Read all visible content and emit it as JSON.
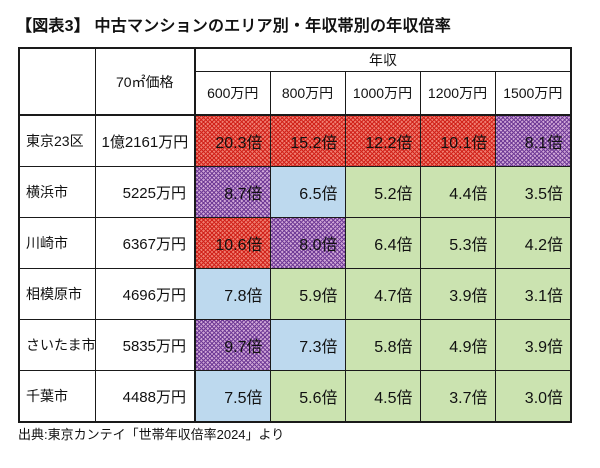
{
  "figure": {
    "title": "【図表3】 中古マンションのエリア別・年収帯別の年収倍率",
    "source_note": "出典:東京カンテイ「世帯年収倍率2024」より"
  },
  "chart_data": {
    "type": "table",
    "title": "中古マンションのエリア別・年収帯別の年収倍率",
    "column_group_label": "年収",
    "price_column_label": "70㎡価格",
    "income_columns": [
      "600万円",
      "800万円",
      "1000万円",
      "1200万円",
      "1500万円"
    ],
    "unit_suffix": "倍",
    "rows": [
      {
        "area": "東京23区",
        "price": "1億2161万円",
        "ratios": [
          20.3,
          15.2,
          12.2,
          10.1,
          8.1
        ],
        "labels": [
          "20.3倍",
          "15.2倍",
          "12.2倍",
          "10.1倍",
          "8.1倍"
        ],
        "fills": [
          "red",
          "red",
          "red",
          "red",
          "purple"
        ]
      },
      {
        "area": "横浜市",
        "price": "5225万円",
        "ratios": [
          8.7,
          6.5,
          5.2,
          4.4,
          3.5
        ],
        "labels": [
          "8.7倍",
          "6.5倍",
          "5.2倍",
          "4.4倍",
          "3.5倍"
        ],
        "fills": [
          "purple",
          "blue",
          "green",
          "green",
          "green"
        ]
      },
      {
        "area": "川崎市",
        "price": "6367万円",
        "ratios": [
          10.6,
          8.0,
          6.4,
          5.3,
          4.2
        ],
        "labels": [
          "10.6倍",
          "8.0倍",
          "6.4倍",
          "5.3倍",
          "4.2倍"
        ],
        "fills": [
          "red",
          "purple",
          "green",
          "green",
          "green"
        ]
      },
      {
        "area": "相模原市",
        "price": "4696万円",
        "ratios": [
          7.8,
          5.9,
          4.7,
          3.9,
          3.1
        ],
        "labels": [
          "7.8倍",
          "5.9倍",
          "4.7倍",
          "3.9倍",
          "3.1倍"
        ],
        "fills": [
          "blue",
          "green",
          "green",
          "green",
          "green"
        ]
      },
      {
        "area": "さいたま市",
        "price": "5835万円",
        "ratios": [
          9.7,
          7.3,
          5.8,
          4.9,
          3.9
        ],
        "labels": [
          "9.7倍",
          "7.3倍",
          "5.8倍",
          "4.9倍",
          "3.9倍"
        ],
        "fills": [
          "purple",
          "blue",
          "green",
          "green",
          "green"
        ]
      },
      {
        "area": "千葉市",
        "price": "4488万円",
        "ratios": [
          7.5,
          5.6,
          4.5,
          3.7,
          3.0
        ],
        "labels": [
          "7.5倍",
          "5.6倍",
          "4.5倍",
          "3.7倍",
          "3.0倍"
        ],
        "fills": [
          "blue",
          "green",
          "green",
          "green",
          "green"
        ]
      }
    ]
  },
  "palette": {
    "red_base": "#ef7d70",
    "red_line": "#d1221a",
    "purple_base": "#cfa6d6",
    "purple_line": "#6f3a96",
    "blue": "#bdd9ee",
    "green": "#cbe3b0",
    "border": "#1a1a1a",
    "text": "#111111"
  }
}
